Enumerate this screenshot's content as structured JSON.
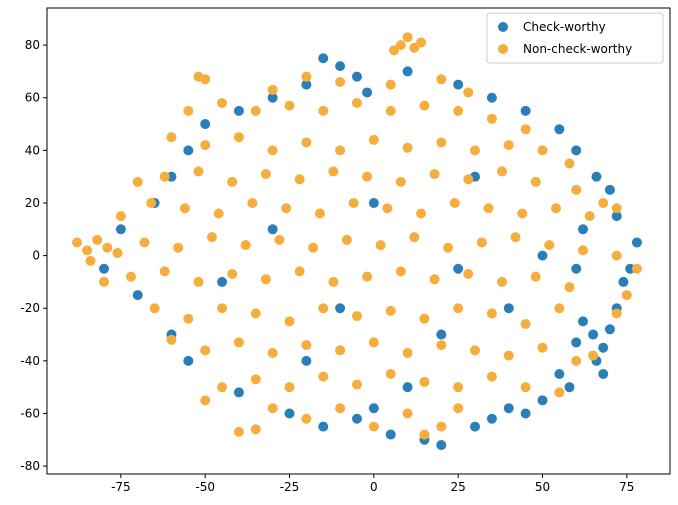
{
  "chart_data": {
    "type": "scatter",
    "xlim": [
      -96.9,
      87.8
    ],
    "ylim": [
      -83.0,
      94.1
    ],
    "xticks": [
      -75,
      -50,
      -25,
      0,
      25,
      50,
      75
    ],
    "yticks": [
      -80,
      -60,
      -40,
      -20,
      0,
      20,
      40,
      60,
      80
    ],
    "legend": "upper right",
    "series": [
      {
        "name": "Check-worthy",
        "color": "#2b7fb8",
        "x": [
          65,
          68,
          62,
          70,
          66,
          60,
          72,
          68,
          58,
          50,
          45,
          35,
          40,
          55,
          74,
          78,
          76,
          72,
          70,
          66,
          60,
          55,
          45,
          35,
          25,
          10,
          -5,
          -10,
          -15,
          -2,
          -20,
          -30,
          -40,
          -50,
          -55,
          -60,
          -65,
          -75,
          -80,
          -70,
          -60,
          -55,
          -40,
          -25,
          -15,
          -5,
          0,
          5,
          15,
          20,
          30,
          10,
          -20,
          20,
          40,
          0,
          30,
          -30,
          50,
          -10,
          60,
          62,
          25,
          -45
        ],
        "y": [
          -30,
          -35,
          -25,
          -28,
          -40,
          -33,
          -20,
          -45,
          -50,
          -55,
          -60,
          -62,
          -58,
          -45,
          -10,
          5,
          -5,
          15,
          25,
          30,
          40,
          48,
          55,
          60,
          65,
          70,
          68,
          72,
          75,
          62,
          65,
          60,
          55,
          50,
          40,
          30,
          20,
          10,
          -5,
          -15,
          -30,
          -40,
          -52,
          -60,
          -65,
          -62,
          -58,
          -68,
          -70,
          -72,
          -65,
          -50,
          -40,
          -30,
          -20,
          20,
          30,
          10,
          0,
          -20,
          -5,
          10,
          -5,
          -10
        ]
      },
      {
        "name": "Non-check-worthy",
        "color": "#f5ae3d",
        "x": [
          8,
          10,
          12,
          14,
          6,
          -50,
          -52,
          -30,
          -20,
          -10,
          5,
          20,
          28,
          -55,
          -45,
          -35,
          -25,
          -15,
          -5,
          5,
          15,
          25,
          35,
          45,
          -60,
          -50,
          -40,
          -30,
          -20,
          -10,
          0,
          10,
          20,
          30,
          40,
          50,
          58,
          -70,
          -62,
          -52,
          -42,
          -32,
          -22,
          -12,
          -2,
          8,
          18,
          28,
          38,
          48,
          60,
          68,
          -75,
          -66,
          -56,
          -46,
          -36,
          -26,
          -16,
          -6,
          4,
          14,
          24,
          34,
          44,
          54,
          64,
          72,
          -88,
          -85,
          -82,
          -79,
          -76,
          -84,
          -68,
          -58,
          -48,
          -38,
          -28,
          -18,
          -8,
          2,
          12,
          22,
          32,
          42,
          52,
          62,
          72,
          78,
          -80,
          -72,
          -62,
          -52,
          -42,
          -32,
          -22,
          -12,
          -2,
          8,
          18,
          28,
          38,
          48,
          58,
          75,
          -65,
          -55,
          -45,
          -35,
          -25,
          -15,
          -5,
          5,
          15,
          25,
          35,
          45,
          55,
          72,
          -60,
          -50,
          -40,
          -30,
          -20,
          -10,
          0,
          10,
          20,
          30,
          40,
          50,
          60,
          -45,
          -35,
          -25,
          -15,
          -5,
          5,
          15,
          25,
          35,
          45,
          55,
          65,
          -50,
          -40,
          -35,
          -30,
          -20,
          -10,
          0,
          10,
          20,
          25,
          15
        ],
        "y": [
          80,
          83,
          79,
          81,
          78,
          67,
          68,
          63,
          68,
          66,
          65,
          67,
          62,
          55,
          58,
          55,
          57,
          55,
          58,
          55,
          57,
          55,
          52,
          48,
          45,
          42,
          45,
          40,
          43,
          40,
          44,
          41,
          43,
          40,
          42,
          40,
          35,
          28,
          30,
          32,
          28,
          31,
          29,
          32,
          30,
          28,
          31,
          29,
          32,
          28,
          25,
          20,
          15,
          20,
          18,
          16,
          20,
          18,
          16,
          20,
          18,
          16,
          20,
          18,
          16,
          18,
          15,
          18,
          5,
          2,
          6,
          3,
          1,
          -2,
          5,
          3,
          7,
          4,
          6,
          3,
          6,
          4,
          7,
          3,
          5,
          7,
          4,
          2,
          0,
          -5,
          -10,
          -8,
          -6,
          -10,
          -7,
          -9,
          -6,
          -10,
          -8,
          -6,
          -9,
          -7,
          -10,
          -8,
          -12,
          -15,
          -20,
          -24,
          -20,
          -22,
          -25,
          -20,
          -23,
          -21,
          -24,
          -20,
          -22,
          -26,
          -20,
          -22,
          -32,
          -36,
          -33,
          -37,
          -34,
          -36,
          -33,
          -37,
          -34,
          -36,
          -38,
          -35,
          -40,
          -50,
          -47,
          -50,
          -46,
          -49,
          -45,
          -48,
          -50,
          -46,
          -50,
          -52,
          -38,
          -55,
          -67,
          -66,
          -58,
          -62,
          -58,
          -65,
          -60,
          -65,
          -58,
          -68
        ]
      }
    ]
  }
}
